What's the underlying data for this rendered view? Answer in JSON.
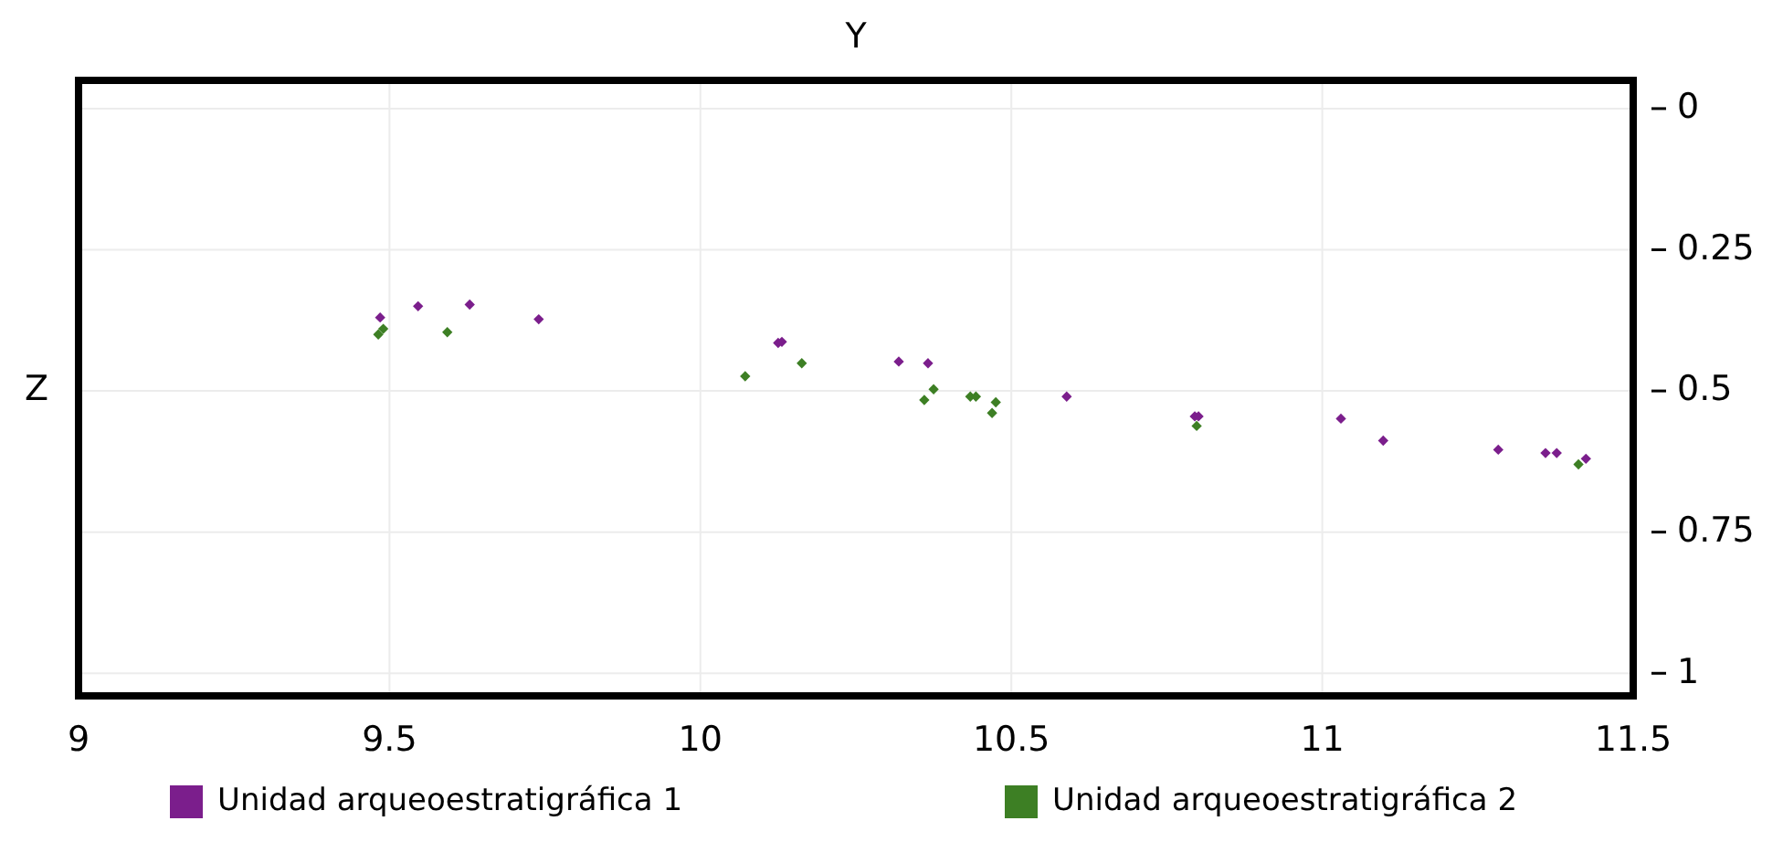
{
  "chart_data": {
    "type": "scatter",
    "title": "Y",
    "ylabel": "Z",
    "xlim": [
      9,
      11.5
    ],
    "xticks": [
      9,
      9.5,
      10,
      10.5,
      11,
      11.5
    ],
    "ylim": [
      1.04,
      -0.05
    ],
    "yticks": [
      0,
      0.25,
      0.5,
      0.75,
      1
    ],
    "grid": true,
    "legend": "bottom",
    "marker": "diamond",
    "series": [
      {
        "name": "Unidad arqueoestratigráfica 1",
        "color": "#7b1e8c",
        "x": [
          9.485,
          9.546,
          9.629,
          9.74,
          10.125,
          10.131,
          10.319,
          10.366,
          10.589,
          10.795,
          10.801,
          11.03,
          11.098,
          11.283,
          11.359,
          11.377,
          11.424
        ],
        "values": [
          0.37,
          0.35,
          0.347,
          0.373,
          0.415,
          0.413,
          0.448,
          0.451,
          0.51,
          0.545,
          0.545,
          0.549,
          0.588,
          0.604,
          0.61,
          0.61,
          0.62
        ]
      },
      {
        "name": "Unidad arqueoestratigráfica 2",
        "color": "#3d7f24",
        "x": [
          9.482,
          9.49,
          9.593,
          10.072,
          10.163,
          10.36,
          10.375,
          10.434,
          10.443,
          10.475,
          10.469,
          10.798,
          11.412
        ],
        "values": [
          0.4,
          0.39,
          0.396,
          0.474,
          0.451,
          0.516,
          0.497,
          0.51,
          0.51,
          0.52,
          0.539,
          0.562,
          0.63
        ]
      }
    ]
  }
}
